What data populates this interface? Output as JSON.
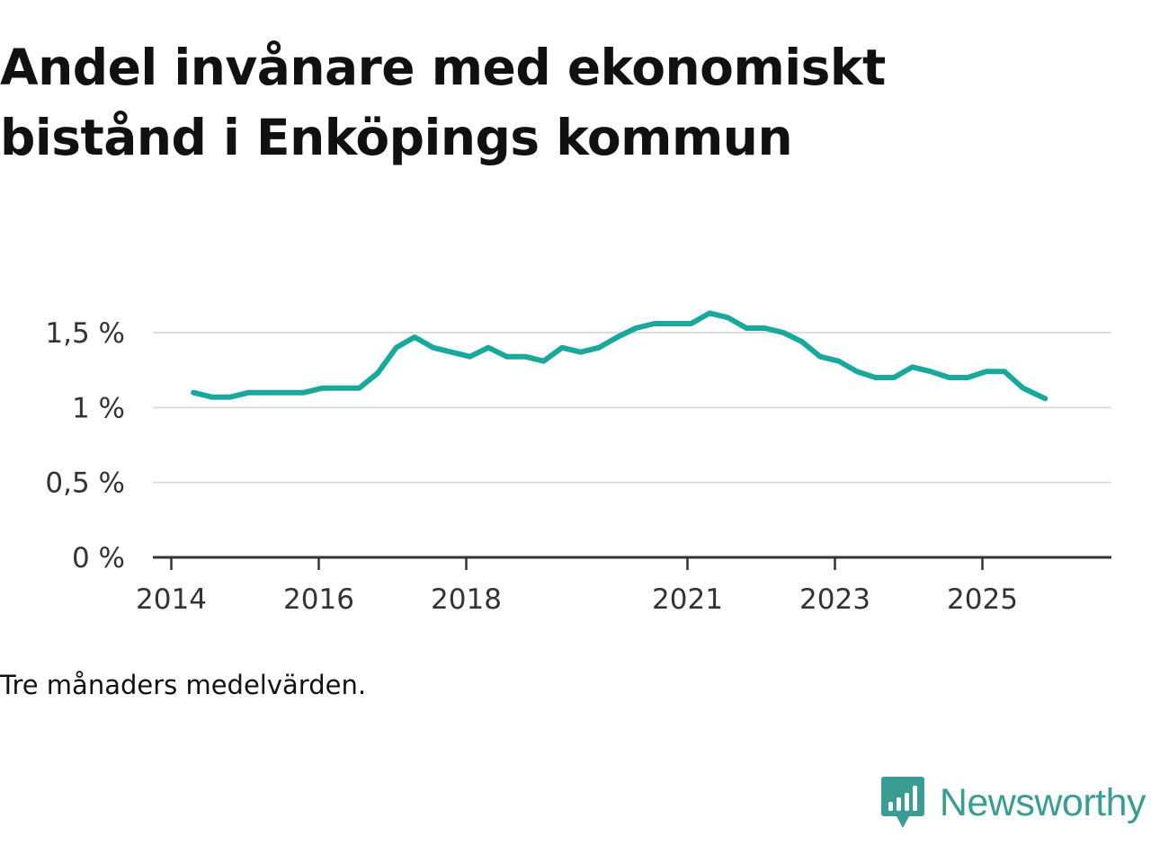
{
  "title": "Andel invånare med ekonomiskt bistånd i Enköpings kommun",
  "note": "Tre månaders medelvärden.",
  "brand": "Newsworthy",
  "colors": {
    "line": "#1aa89c",
    "grid": "#dddddd",
    "axis": "#333333",
    "brand": "#3a9c93"
  },
  "chart_data": {
    "type": "line",
    "title": "Andel invånare med ekonomiskt bistånd i Enköpings kommun",
    "xlabel": "",
    "ylabel": "",
    "ylim": [
      0,
      1.8
    ],
    "xlim": [
      2013.75,
      2026.75
    ],
    "grid": true,
    "y_ticks": [
      {
        "value": 0,
        "label": "0 %"
      },
      {
        "value": 0.5,
        "label": "0,5 %"
      },
      {
        "value": 1,
        "label": "1 %"
      },
      {
        "value": 1.5,
        "label": "1,5 %"
      }
    ],
    "x_ticks": [
      {
        "value": 2014,
        "label": "2014"
      },
      {
        "value": 2016,
        "label": "2016"
      },
      {
        "value": 2018,
        "label": "2018"
      },
      {
        "value": 2021,
        "label": "2021"
      },
      {
        "value": 2023,
        "label": "2023"
      },
      {
        "value": 2025,
        "label": "2025"
      }
    ],
    "series": [
      {
        "name": "Andel invånare med ekonomiskt bistånd",
        "x": [
          2014.3,
          2014.55,
          2014.8,
          2015.05,
          2015.3,
          2015.55,
          2015.8,
          2016.05,
          2016.3,
          2016.55,
          2016.8,
          2017.05,
          2017.3,
          2017.55,
          2017.8,
          2018.05,
          2018.3,
          2018.55,
          2018.8,
          2019.05,
          2019.3,
          2019.55,
          2019.8,
          2020.05,
          2020.3,
          2020.55,
          2020.8,
          2021.05,
          2021.3,
          2021.55,
          2021.8,
          2022.05,
          2022.3,
          2022.55,
          2022.8,
          2023.05,
          2023.3,
          2023.55,
          2023.8,
          2024.05,
          2024.3,
          2024.55,
          2024.8,
          2025.05,
          2025.3,
          2025.55,
          2025.85
        ],
        "values": [
          1.1,
          1.07,
          1.07,
          1.1,
          1.1,
          1.1,
          1.1,
          1.13,
          1.13,
          1.13,
          1.23,
          1.4,
          1.47,
          1.4,
          1.37,
          1.34,
          1.4,
          1.34,
          1.34,
          1.31,
          1.4,
          1.37,
          1.4,
          1.47,
          1.53,
          1.56,
          1.56,
          1.56,
          1.63,
          1.6,
          1.53,
          1.53,
          1.5,
          1.44,
          1.34,
          1.31,
          1.24,
          1.2,
          1.2,
          1.27,
          1.24,
          1.2,
          1.2,
          1.24,
          1.24,
          1.13,
          1.06
        ]
      }
    ]
  }
}
